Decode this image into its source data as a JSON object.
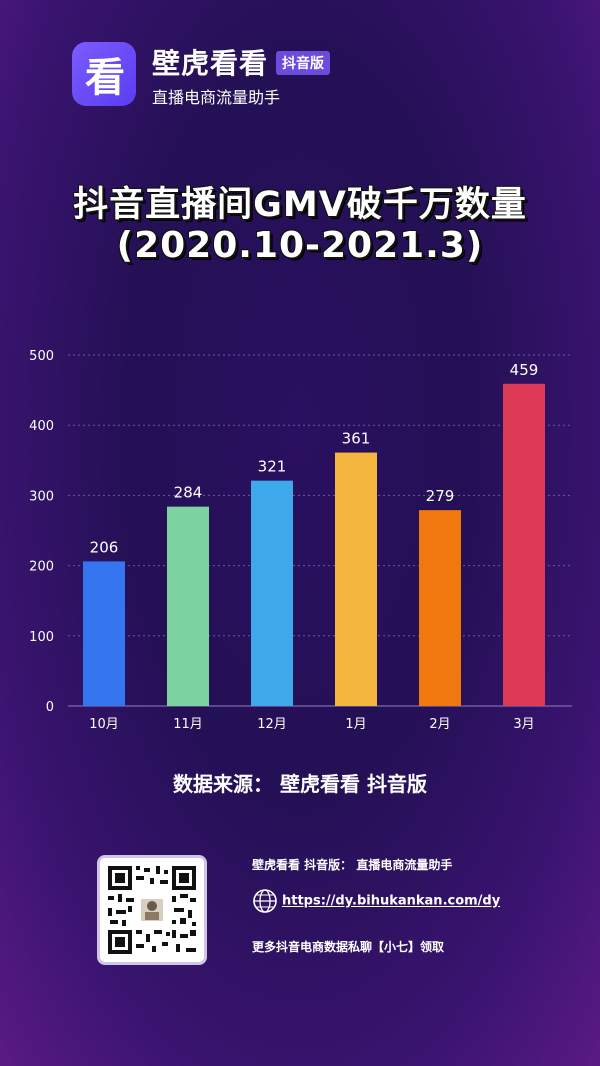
{
  "brand": {
    "logo_char": "看",
    "name": "壁虎看看",
    "tag": "抖音版",
    "subtitle": "直播电商流量助手"
  },
  "title": {
    "line1": "抖音直播间GMV破千万数量",
    "line2": "(2020.10-2021.3)"
  },
  "chart_data": {
    "type": "bar",
    "categories": [
      "10月",
      "11月",
      "12月",
      "1月",
      "2月",
      "3月"
    ],
    "values": [
      206,
      284,
      321,
      361,
      279,
      459
    ],
    "colors": [
      "#3575f0",
      "#7dd3a0",
      "#3ea9ea",
      "#f4b63c",
      "#f0780f",
      "#dc3a55"
    ],
    "ylim": [
      0,
      500
    ],
    "yticks": [
      0,
      100,
      200,
      300,
      400,
      500
    ],
    "grid": true,
    "title": "",
    "xlabel": "",
    "ylabel": ""
  },
  "source": "数据来源：  壁虎看看 抖音版",
  "footer": {
    "line1": "壁虎看看 抖音版：  直播电商流量助手",
    "url": "https://dy.bihukankan.com/dy",
    "line3": "更多抖音电商数据私聊【小七】领取"
  }
}
